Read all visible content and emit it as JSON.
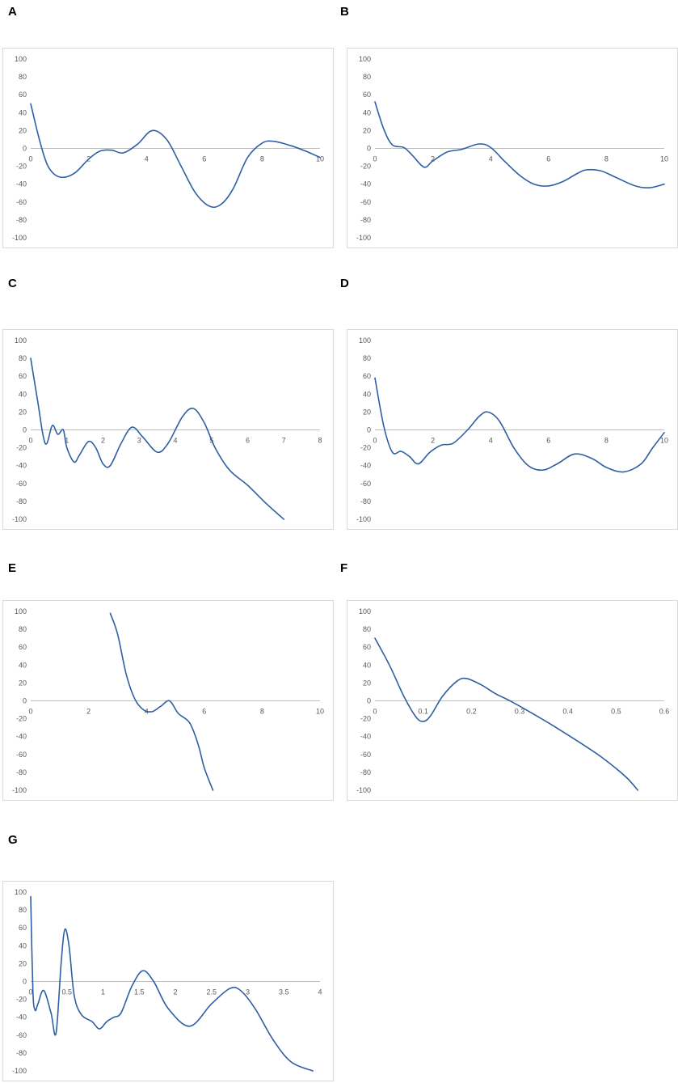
{
  "panels": [
    {
      "label": "A"
    },
    {
      "label": "B"
    },
    {
      "label": "C"
    },
    {
      "label": "D"
    },
    {
      "label": "E"
    },
    {
      "label": "F"
    },
    {
      "label": "G"
    }
  ],
  "colors": {
    "series": "#2e5fa3",
    "axis": "#bfbfbf",
    "frame": "#d9d9d9",
    "tick_text": "#595959"
  },
  "chart_data": [
    {
      "panel": "A",
      "type": "line",
      "grid": false,
      "xlim": [
        0,
        10
      ],
      "ylim": [
        -100,
        100
      ],
      "xticks": [
        0,
        2,
        4,
        6,
        8,
        10
      ],
      "xtick_labels": [
        "0",
        "2",
        "4",
        "6",
        "8",
        "10"
      ],
      "yticks": [
        100,
        80,
        60,
        40,
        20,
        0,
        -20,
        -40,
        -60,
        -80,
        -100
      ],
      "ytick_labels": [
        "100",
        "80",
        "60",
        "40",
        "20",
        "0",
        "-20",
        "-40",
        "-60",
        "-80",
        "-100"
      ],
      "x": [
        0,
        0.3,
        0.6,
        1.0,
        1.5,
        2.0,
        2.4,
        2.8,
        3.2,
        3.7,
        4.2,
        4.7,
        5.2,
        5.7,
        6.2,
        6.6,
        7.0,
        7.5,
        8.0,
        8.4,
        9.0,
        9.5,
        10.0
      ],
      "y": [
        50,
        10,
        -20,
        -32,
        -28,
        -12,
        -3,
        -2,
        -5,
        5,
        20,
        10,
        -20,
        -50,
        -65,
        -62,
        -45,
        -10,
        6,
        8,
        3,
        -3,
        -10
      ]
    },
    {
      "panel": "B",
      "type": "line",
      "grid": false,
      "xlim": [
        0,
        10
      ],
      "ylim": [
        -100,
        100
      ],
      "xticks": [
        0,
        2,
        4,
        6,
        8,
        10
      ],
      "xtick_labels": [
        "0",
        "2",
        "4",
        "6",
        "8",
        "10"
      ],
      "yticks": [
        100,
        80,
        60,
        40,
        20,
        0,
        -20,
        -40,
        -60,
        -80,
        -100
      ],
      "ytick_labels": [
        "100",
        "80",
        "60",
        "40",
        "20",
        "0",
        "-20",
        "-40",
        "-60",
        "-80",
        "-100"
      ],
      "x": [
        0,
        0.3,
        0.6,
        1.0,
        1.3,
        1.7,
        2.0,
        2.5,
        3.0,
        3.6,
        4.0,
        4.5,
        5.0,
        5.5,
        6.0,
        6.5,
        7.0,
        7.3,
        7.8,
        8.3,
        9.0,
        9.5,
        10.0
      ],
      "y": [
        52,
        22,
        4,
        1,
        -8,
        -21,
        -14,
        -4,
        -1,
        5,
        1,
        -15,
        -30,
        -40,
        -42,
        -37,
        -28,
        -24,
        -25,
        -32,
        -42,
        -44,
        -40
      ]
    },
    {
      "panel": "C",
      "type": "line",
      "grid": false,
      "xlim": [
        0,
        8
      ],
      "ylim": [
        -100,
        100
      ],
      "xticks": [
        0,
        1,
        2,
        3,
        4,
        5,
        6,
        7,
        8
      ],
      "xtick_labels": [
        "0",
        "1",
        "2",
        "3",
        "4",
        "5",
        "6",
        "7",
        "8"
      ],
      "yticks": [
        100,
        80,
        60,
        40,
        20,
        0,
        -20,
        -40,
        -60,
        -80,
        -100
      ],
      "ytick_labels": [
        "100",
        "80",
        "60",
        "40",
        "20",
        "0",
        "-20",
        "-40",
        "-60",
        "-80",
        "-100"
      ],
      "x": [
        0,
        0.2,
        0.35,
        0.45,
        0.6,
        0.75,
        0.9,
        1.0,
        1.2,
        1.35,
        1.6,
        1.8,
        2.0,
        2.2,
        2.5,
        2.8,
        3.1,
        3.5,
        3.8,
        4.2,
        4.5,
        4.8,
        5.1,
        5.5,
        6.0,
        6.5,
        7.0
      ],
      "y": [
        80,
        30,
        -8,
        -15,
        5,
        -5,
        0,
        -20,
        -36,
        -28,
        -13,
        -20,
        -38,
        -40,
        -15,
        3,
        -8,
        -25,
        -15,
        15,
        24,
        8,
        -20,
        -45,
        -62,
        -82,
        -100
      ]
    },
    {
      "panel": "D",
      "type": "line",
      "grid": false,
      "xlim": [
        0,
        10
      ],
      "ylim": [
        -100,
        100
      ],
      "xticks": [
        0,
        2,
        4,
        6,
        8,
        10
      ],
      "xtick_labels": [
        "0",
        "2",
        "4",
        "6",
        "8",
        "10"
      ],
      "yticks": [
        100,
        80,
        60,
        40,
        20,
        0,
        -20,
        -40,
        -60,
        -80,
        -100
      ],
      "ytick_labels": [
        "100",
        "80",
        "60",
        "40",
        "20",
        "0",
        "-20",
        "-40",
        "-60",
        "-80",
        "-100"
      ],
      "x": [
        0,
        0.3,
        0.6,
        0.9,
        1.2,
        1.5,
        1.9,
        2.3,
        2.7,
        3.2,
        3.6,
        3.9,
        4.3,
        4.8,
        5.3,
        5.8,
        6.3,
        6.9,
        7.5,
        8.0,
        8.6,
        9.2,
        9.6,
        10.0
      ],
      "y": [
        58,
        5,
        -25,
        -24,
        -30,
        -38,
        -25,
        -17,
        -15,
        0,
        15,
        20,
        10,
        -20,
        -40,
        -45,
        -38,
        -27,
        -32,
        -42,
        -47,
        -38,
        -20,
        -3
      ]
    },
    {
      "panel": "E",
      "type": "line",
      "grid": false,
      "xlim": [
        0,
        10
      ],
      "ylim": [
        -100,
        100
      ],
      "xticks": [
        0,
        2,
        4,
        6,
        8,
        10
      ],
      "xtick_labels": [
        "0",
        "2",
        "4",
        "6",
        "8",
        "10"
      ],
      "yticks": [
        100,
        80,
        60,
        40,
        20,
        0,
        -20,
        -40,
        -60,
        -80,
        -100
      ],
      "ytick_labels": [
        "100",
        "80",
        "60",
        "40",
        "20",
        "0",
        "-20",
        "-40",
        "-60",
        "-80",
        "-100"
      ],
      "x": [
        2.75,
        3.0,
        3.3,
        3.6,
        3.9,
        4.2,
        4.5,
        4.8,
        5.1,
        5.5,
        5.8,
        6.0,
        6.3
      ],
      "y": [
        98,
        75,
        30,
        2,
        -10,
        -12,
        -6,
        0,
        -14,
        -25,
        -50,
        -75,
        -100
      ]
    },
    {
      "panel": "F",
      "type": "line",
      "grid": false,
      "xlim": [
        0,
        0.6
      ],
      "ylim": [
        -100,
        100
      ],
      "xticks": [
        0,
        0.1,
        0.2,
        0.3,
        0.4,
        0.5,
        0.6
      ],
      "xtick_labels": [
        "0",
        "0.1",
        "0.2",
        "0.3",
        "0.4",
        "0.5",
        "0.6"
      ],
      "yticks": [
        100,
        80,
        60,
        40,
        20,
        0,
        -20,
        -40,
        -60,
        -80,
        -100
      ],
      "ytick_labels": [
        "100",
        "80",
        "60",
        "40",
        "20",
        "0",
        "-20",
        "-40",
        "-60",
        "-80",
        "-100"
      ],
      "x": [
        0,
        0.03,
        0.06,
        0.085,
        0.1,
        0.115,
        0.14,
        0.17,
        0.19,
        0.22,
        0.25,
        0.28,
        0.32,
        0.37,
        0.42,
        0.47,
        0.52,
        0.545
      ],
      "y": [
        70,
        40,
        5,
        -18,
        -23,
        -17,
        5,
        22,
        25,
        18,
        8,
        0,
        -12,
        -28,
        -45,
        -63,
        -85,
        -100
      ]
    },
    {
      "panel": "G",
      "type": "line",
      "grid": false,
      "xlim": [
        0,
        4
      ],
      "ylim": [
        -100,
        100
      ],
      "xticks": [
        0,
        0.5,
        1,
        1.5,
        2,
        2.5,
        3,
        3.5,
        4
      ],
      "xtick_labels": [
        "0",
        "0.5",
        "1",
        "1.5",
        "2",
        "2.5",
        "3",
        "3.5",
        "4"
      ],
      "yticks": [
        100,
        80,
        60,
        40,
        20,
        0,
        -20,
        -40,
        -60,
        -80,
        -100
      ],
      "ytick_labels": [
        "100",
        "80",
        "60",
        "40",
        "20",
        "0",
        "-20",
        "-40",
        "-60",
        "-80",
        "-100"
      ],
      "x": [
        0,
        0.03,
        0.06,
        0.1,
        0.18,
        0.28,
        0.35,
        0.42,
        0.47,
        0.53,
        0.6,
        0.7,
        0.85,
        0.95,
        1.05,
        1.15,
        1.25,
        1.4,
        1.55,
        1.7,
        1.9,
        2.2,
        2.5,
        2.75,
        2.9,
        3.1,
        3.35,
        3.6,
        3.9
      ],
      "y": [
        95,
        -10,
        -32,
        -25,
        -10,
        -35,
        -58,
        20,
        58,
        40,
        -15,
        -37,
        -45,
        -53,
        -45,
        -40,
        -35,
        -5,
        12,
        0,
        -30,
        -50,
        -25,
        -8,
        -10,
        -30,
        -65,
        -90,
        -100
      ]
    }
  ]
}
